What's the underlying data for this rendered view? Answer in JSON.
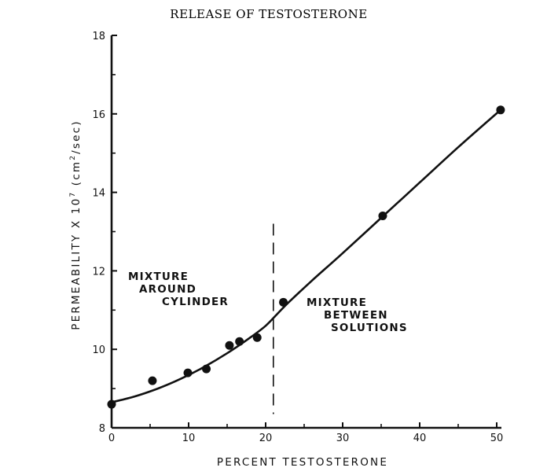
{
  "chart_data": {
    "type": "scatter",
    "title": "RELEASE OF TESTOSTERONE",
    "xlabel": "PERCENT TESTOSTERONE",
    "ylabel_parts": [
      "PERMEABILITY X 10",
      "7",
      " (cm",
      "2",
      "/sec)"
    ],
    "xlim": [
      0,
      50
    ],
    "ylim": [
      8,
      18
    ],
    "x_ticks": [
      0,
      10,
      20,
      30,
      40,
      50
    ],
    "y_ticks": [
      8,
      10,
      12,
      14,
      16,
      18
    ],
    "grid": false,
    "points": [
      {
        "x": 0,
        "y": 8.6
      },
      {
        "x": 5.3,
        "y": 9.2
      },
      {
        "x": 9.9,
        "y": 9.4
      },
      {
        "x": 12.3,
        "y": 9.5
      },
      {
        "x": 15.3,
        "y": 10.1
      },
      {
        "x": 16.6,
        "y": 10.2
      },
      {
        "x": 18.9,
        "y": 10.3
      },
      {
        "x": 22.3,
        "y": 11.2
      },
      {
        "x": 35.2,
        "y": 13.4
      },
      {
        "x": 50.5,
        "y": 16.1
      }
    ],
    "fit_curve": [
      {
        "x": 0,
        "y": 8.65
      },
      {
        "x": 3,
        "y": 8.8
      },
      {
        "x": 6,
        "y": 9.0
      },
      {
        "x": 9,
        "y": 9.25
      },
      {
        "x": 12,
        "y": 9.55
      },
      {
        "x": 15,
        "y": 9.9
      },
      {
        "x": 18,
        "y": 10.3
      },
      {
        "x": 20,
        "y": 10.6
      },
      {
        "x": 21.5,
        "y": 10.9
      },
      {
        "x": 23,
        "y": 11.2
      },
      {
        "x": 26,
        "y": 11.75
      },
      {
        "x": 30,
        "y": 12.45
      },
      {
        "x": 35,
        "y": 13.35
      },
      {
        "x": 40,
        "y": 14.25
      },
      {
        "x": 45,
        "y": 15.15
      },
      {
        "x": 50.5,
        "y": 16.1
      }
    ],
    "divider_x": 21,
    "annotations": [
      {
        "lines": [
          "MIXTURE",
          "AROUND",
          "CYLINDER"
        ]
      },
      {
        "lines": [
          "MIXTURE",
          "BETWEEN",
          "SOLUTIONS"
        ]
      }
    ]
  }
}
